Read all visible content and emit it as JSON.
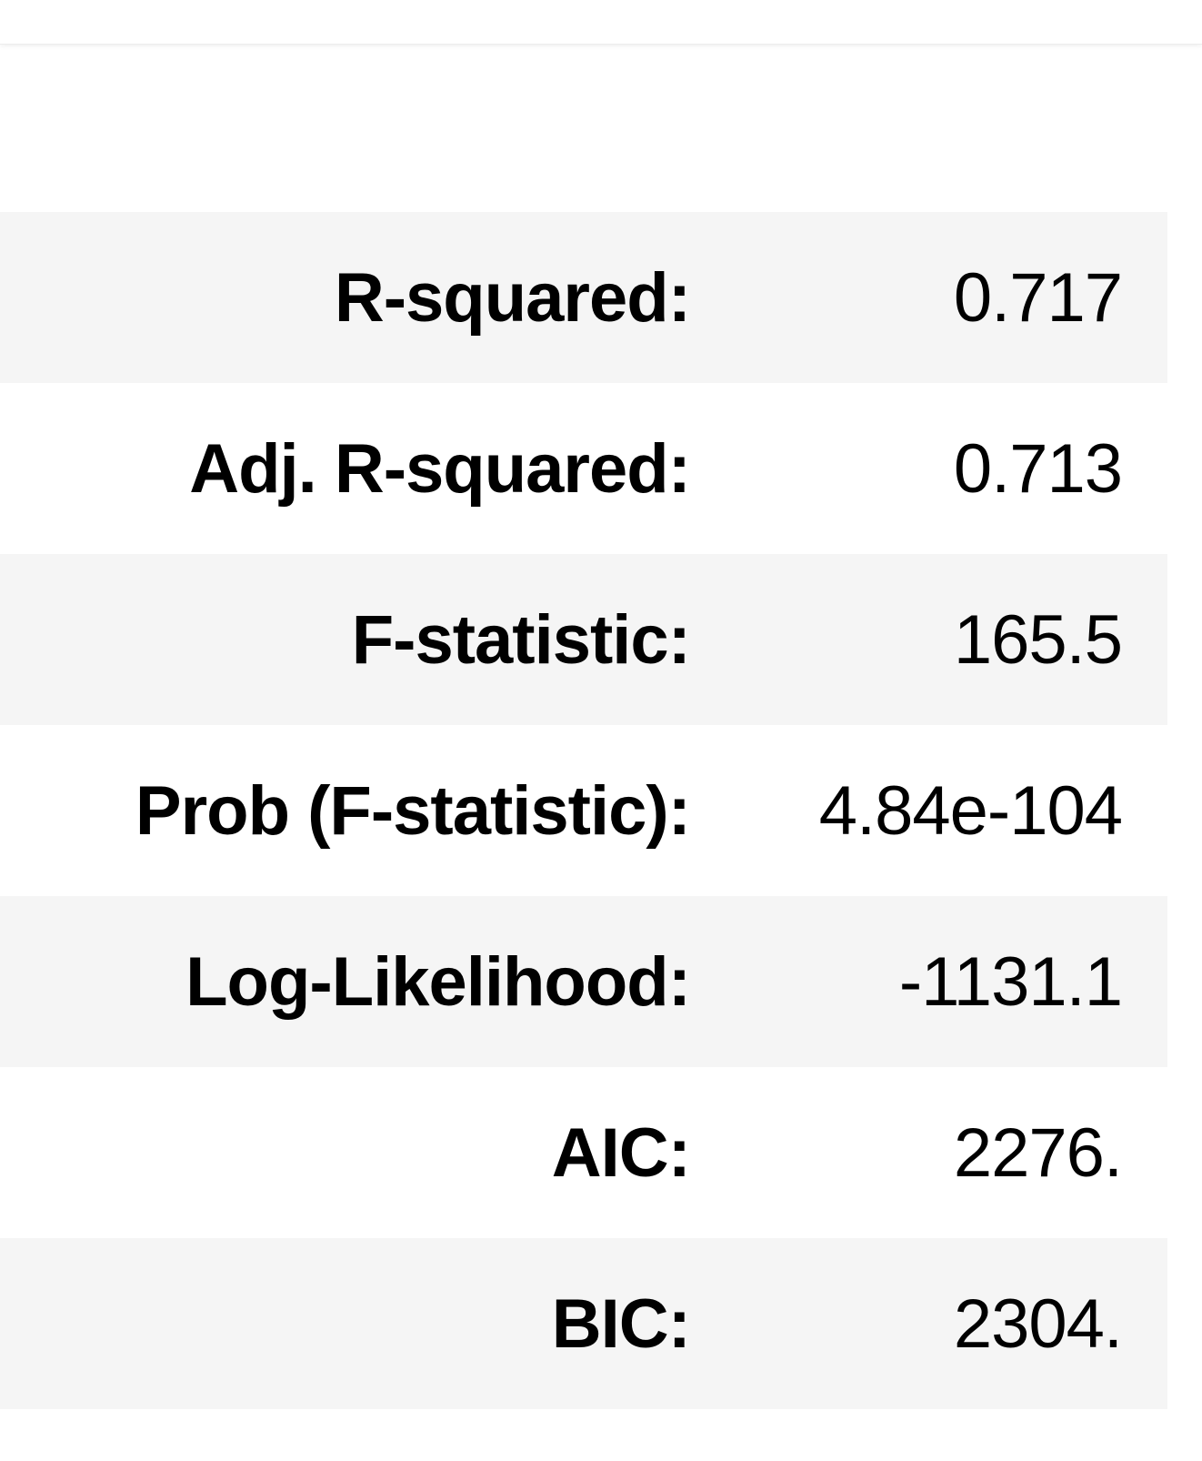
{
  "table": {
    "rows": [
      {
        "label": "R-squared:",
        "value": "0.717"
      },
      {
        "label": "Adj. R-squared:",
        "value": "0.713"
      },
      {
        "label": "F-statistic:",
        "value": "165.5"
      },
      {
        "label": "Prob (F-statistic):",
        "value": "4.84e-104"
      },
      {
        "label": "Log-Likelihood:",
        "value": "-1131.1"
      },
      {
        "label": "AIC:",
        "value": "2276."
      },
      {
        "label": "BIC:",
        "value": "2304."
      }
    ]
  },
  "colors": {
    "stripe": "#f5f5f5",
    "background": "#ffffff",
    "text": "#000000"
  }
}
